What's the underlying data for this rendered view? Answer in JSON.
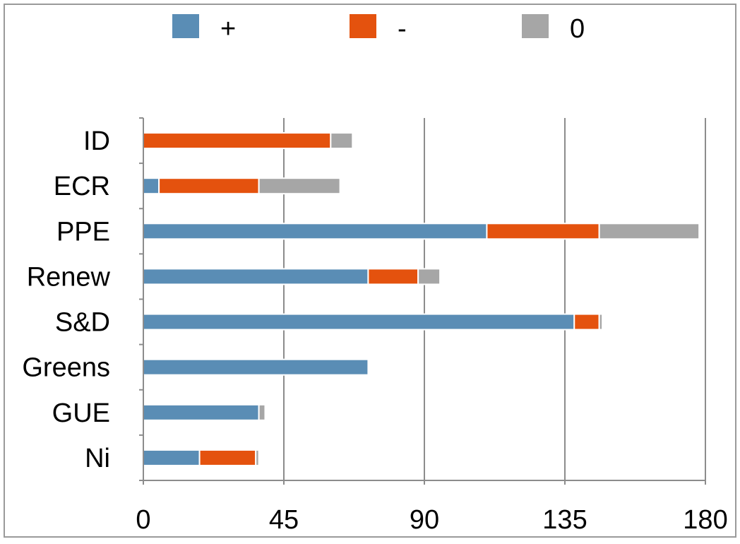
{
  "chart_data": {
    "type": "bar",
    "orientation": "horizontal",
    "stacked": true,
    "categories": [
      "ID",
      "ECR",
      "PPE",
      "Renew",
      "S&D",
      "Greens",
      "GUE",
      "Ni"
    ],
    "series": [
      {
        "name": "+",
        "color": "#5a8db5",
        "values": [
          0,
          5,
          110,
          72,
          138,
          72,
          37,
          18
        ]
      },
      {
        "name": "-",
        "color": "#e4520e",
        "values": [
          60,
          32,
          36,
          16,
          8,
          0,
          0,
          18
        ]
      },
      {
        "name": "0",
        "color": "#a6a6a6",
        "values": [
          7,
          26,
          32,
          7,
          1,
          0,
          2,
          1
        ]
      }
    ],
    "xlim": [
      0,
      180
    ],
    "xticks": [
      0,
      45,
      90,
      135,
      180
    ],
    "grid": true,
    "legend": "top"
  }
}
